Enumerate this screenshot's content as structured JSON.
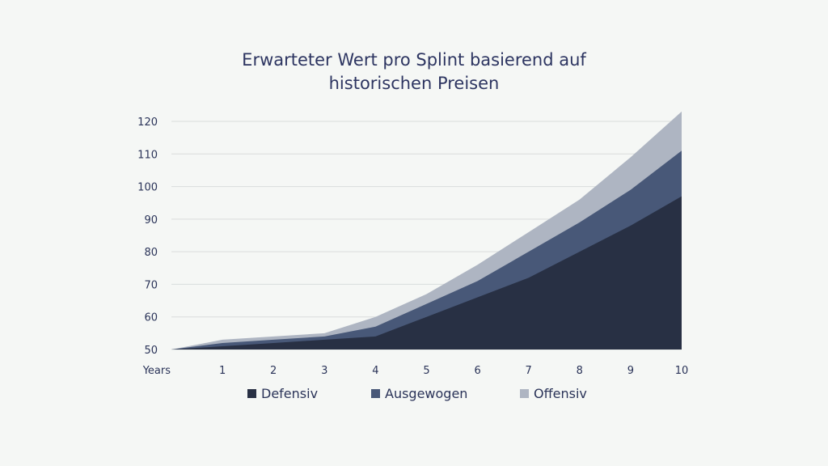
{
  "chart_data": {
    "type": "area",
    "stacked": true,
    "title_lines": [
      "Erwarteter Wert pro Splint basierend auf",
      "historischen Preisen"
    ],
    "x_first_label": "Years",
    "x": [
      0,
      1,
      2,
      3,
      4,
      5,
      6,
      7,
      8,
      9,
      10
    ],
    "x_tick_labels": [
      "Years",
      "1",
      "2",
      "3",
      "4",
      "5",
      "6",
      "7",
      "8",
      "9",
      "10"
    ],
    "ylim": [
      50,
      120
    ],
    "y_ticks": [
      50,
      60,
      70,
      80,
      90,
      100,
      110,
      120
    ],
    "grid": "horizontal",
    "legend_position": "bottom",
    "series": [
      {
        "name": "Defensiv",
        "color": "#283044",
        "values": [
          50,
          51,
          52,
          53,
          54,
          60,
          66,
          72,
          80,
          88,
          97
        ]
      },
      {
        "name": "Ausgewogen",
        "color": "#485878",
        "values": [
          50,
          52,
          53,
          54,
          57,
          64,
          71,
          80,
          89,
          99,
          111
        ]
      },
      {
        "name": "Offensiv",
        "color": "#aeb5c2",
        "values": [
          50,
          53,
          54,
          55,
          60,
          67,
          76,
          86,
          96,
          109,
          123
        ]
      }
    ]
  }
}
